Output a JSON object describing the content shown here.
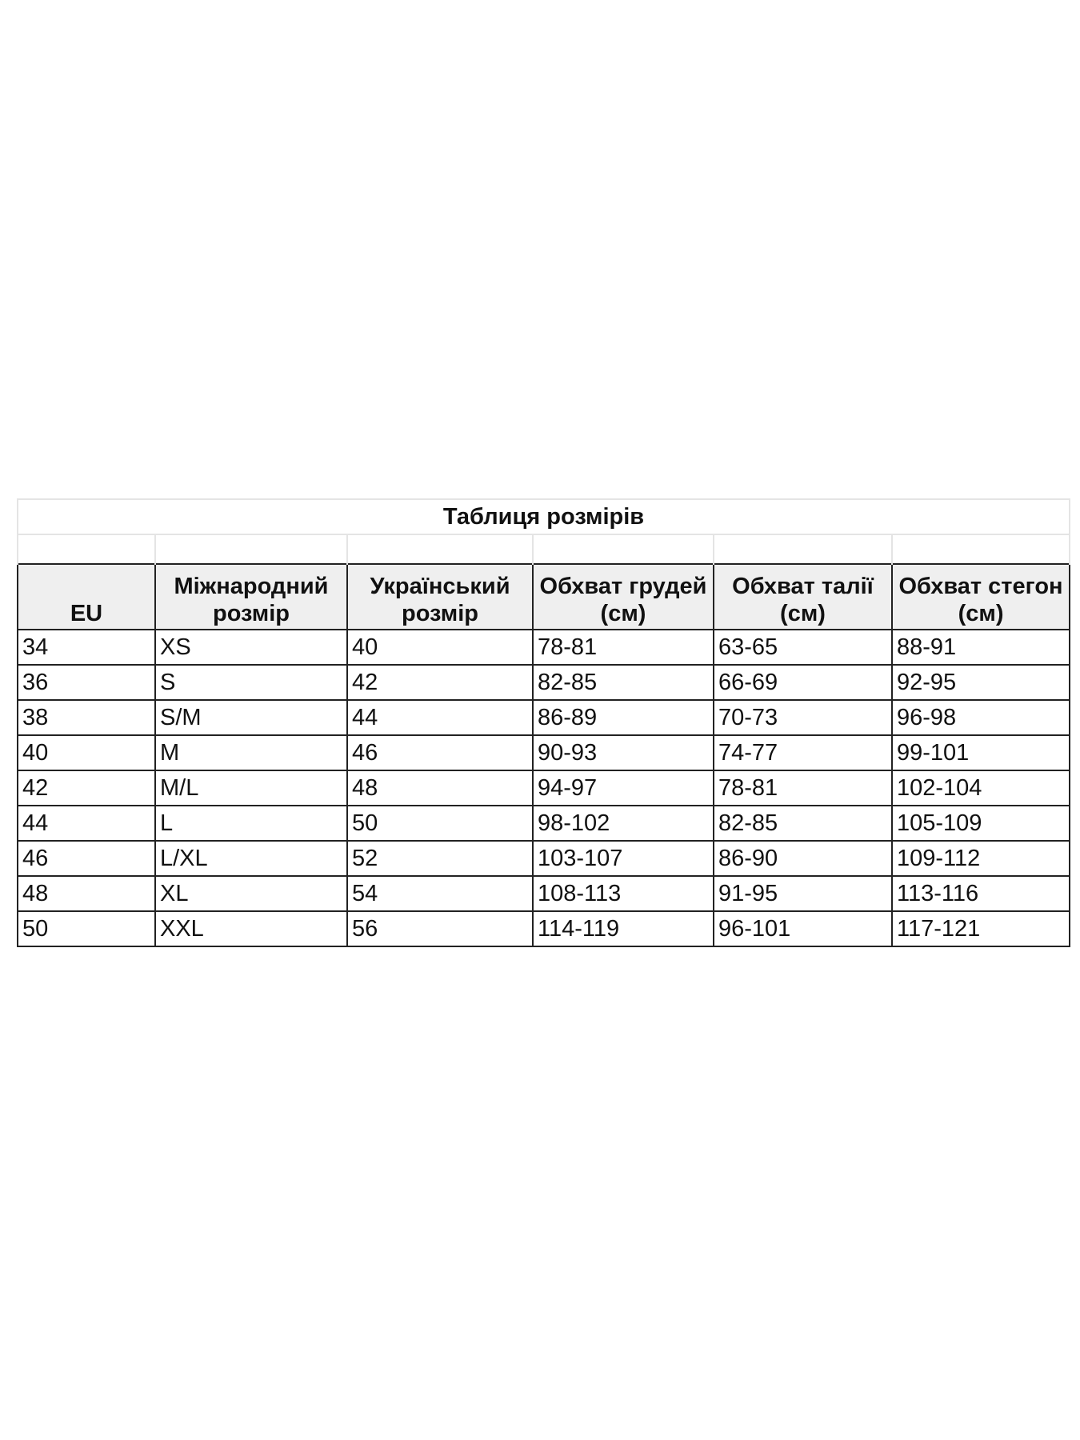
{
  "title": "Таблиця розмірів",
  "columns": [
    "EU",
    "Міжнародний розмір",
    "Український розмір",
    "Обхват грудей (см)",
    "Обхват талії (см)",
    "Обхват стегон (см)"
  ],
  "rows": [
    [
      "34",
      "XS",
      "40",
      "78-81",
      "63-65",
      "88-91"
    ],
    [
      "36",
      "S",
      "42",
      "82-85",
      "66-69",
      "92-95"
    ],
    [
      "38",
      "S/M",
      "44",
      "86-89",
      "70-73",
      "96-98"
    ],
    [
      "40",
      "M",
      "46",
      "90-93",
      "74-77",
      "99-101"
    ],
    [
      "42",
      "M/L",
      "48",
      "94-97",
      "78-81",
      "102-104"
    ],
    [
      "44",
      "L",
      "50",
      "98-102",
      "82-85",
      "105-109"
    ],
    [
      "46",
      "L/XL",
      "52",
      "103-107",
      "86-90",
      "109-112"
    ],
    [
      "48",
      "XL",
      "54",
      "108-113",
      "91-95",
      "113-116"
    ],
    [
      "50",
      "XXL",
      "56",
      "114-119",
      "96-101",
      "117-121"
    ]
  ]
}
